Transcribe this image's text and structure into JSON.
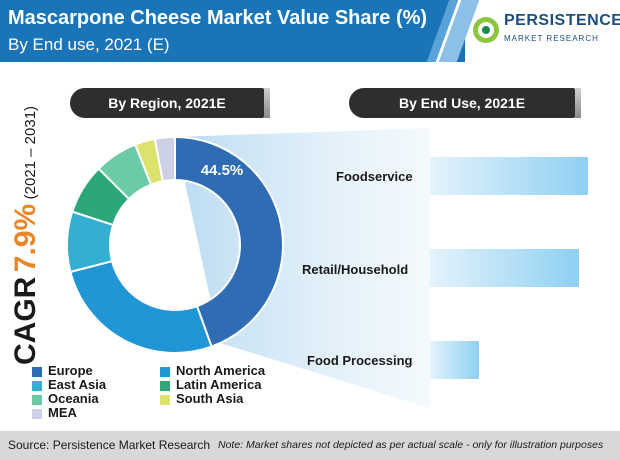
{
  "header": {
    "title": "Mascarpone Cheese Market Value Share (%)",
    "subtitle": "By End use, 2021 (E)"
  },
  "logo": {
    "name": "PERSISTENCE",
    "tagline": "MARKET RESEARCH"
  },
  "cagr": {
    "label": "CAGR",
    "value": "7.9%",
    "period": "(2021 – 2031)"
  },
  "colors": {
    "header": "#1a74b8",
    "accent": "#e8872a"
  },
  "chart_data": [
    {
      "type": "pie",
      "title": "By Region, 2021E",
      "slices": [
        {
          "name": "Europe",
          "value": 44.5,
          "color": "#2f6cb4",
          "label": "44.5%"
        },
        {
          "name": "North America",
          "value": 26.5,
          "color": "#2196d6",
          "label": ""
        },
        {
          "name": "East Asia",
          "value": 9,
          "color": "#34aed1",
          "label": ""
        },
        {
          "name": "Latin America",
          "value": 7.5,
          "color": "#2ca77a",
          "label": ""
        },
        {
          "name": "Oceania",
          "value": 6.5,
          "color": "#6ccaa5",
          "label": ""
        },
        {
          "name": "South Asia",
          "value": 3,
          "color": "#dbe36d",
          "label": ""
        },
        {
          "name": "MEA",
          "value": 3,
          "color": "#cdd1e6",
          "label": ""
        }
      ]
    },
    {
      "type": "bar",
      "title": "By End Use, 2021E",
      "categories": [
        "Foodservice",
        "Retail/Household",
        "Food Processing"
      ],
      "values": [
        100,
        94,
        31
      ],
      "note": "bars not to scale"
    }
  ],
  "footer": {
    "source": "Source: Persistence Market Research",
    "note": "Note: Market shares not depicted as per actual scale - only for illustration purposes"
  }
}
